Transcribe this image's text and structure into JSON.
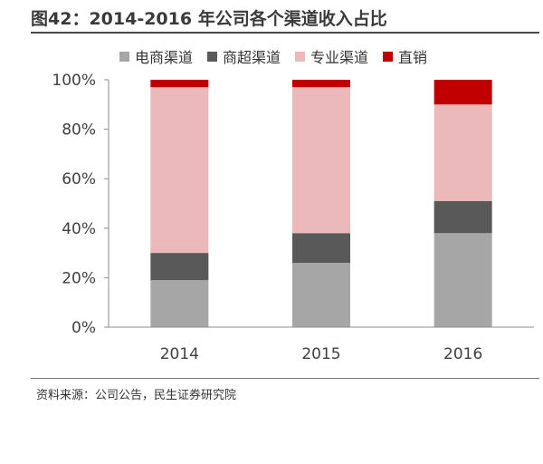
{
  "title": "图42：2014-2016 年公司各个渠道收入占比",
  "source": "资料来源：公司公告，民生证券研究院",
  "chart_data": {
    "type": "bar",
    "stacked": true,
    "categories": [
      "2014",
      "2015",
      "2016"
    ],
    "series": [
      {
        "name": "电商渠道",
        "color": "#a6a6a6",
        "values": [
          19,
          26,
          38
        ]
      },
      {
        "name": "商超渠道",
        "color": "#595959",
        "values": [
          11,
          12,
          13
        ]
      },
      {
        "name": "专业渠道",
        "color": "#ebb9b9",
        "values": [
          67,
          59,
          39
        ]
      },
      {
        "name": "直销",
        "color": "#c00000",
        "values": [
          3,
          3,
          10
        ]
      }
    ],
    "ylim": [
      0,
      100
    ],
    "yticks": [
      "0%",
      "20%",
      "40%",
      "60%",
      "80%",
      "100%"
    ],
    "ytick_values": [
      0,
      20,
      40,
      60,
      80,
      100
    ],
    "legend_position": "top",
    "grid": false
  }
}
